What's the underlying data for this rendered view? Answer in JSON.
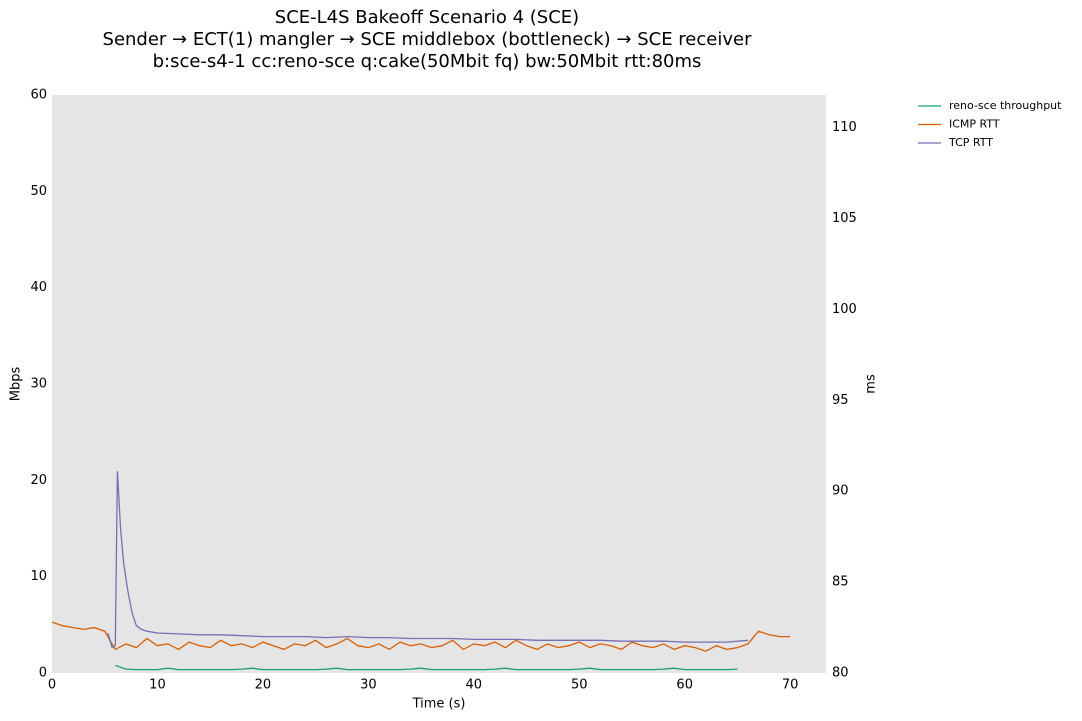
{
  "chart_data": {
    "type": "line",
    "title": "SCE-L4S Bakeoff Scenario 4 (SCE)",
    "subtitle": [
      "Sender → ECT(1) mangler → SCE middlebox (bottleneck) → SCE receiver",
      "b:sce-s4-1 cc:reno-sce q:cake(50Mbit fq) bw:50Mbit rtt:80ms"
    ],
    "x_label": "Time (s)",
    "y_label": "Mbps",
    "y2_label": "ms",
    "xlim": [
      0,
      73.4
    ],
    "xticks": [
      0,
      10,
      20,
      30,
      40,
      50,
      60,
      70
    ],
    "ylim": [
      0,
      60
    ],
    "yticks": [
      0,
      10,
      20,
      30,
      40,
      50,
      60
    ],
    "y2lim": [
      80,
      111.8
    ],
    "y2ticks": [
      80,
      85,
      90,
      95,
      100,
      105,
      110
    ],
    "grid": false,
    "legend": "outside upper right",
    "background": "#e5e5e5",
    "series": [
      {
        "name": "reno-sce throughput",
        "color": "#1b9e77",
        "axis": "y",
        "x": [
          6,
          7,
          8,
          9,
          10,
          11,
          12,
          13,
          14,
          15,
          16,
          17,
          18,
          19,
          20,
          21,
          22,
          23,
          24,
          25,
          26,
          27,
          28,
          29,
          30,
          31,
          32,
          33,
          34,
          35,
          36,
          37,
          38,
          39,
          40,
          41,
          42,
          43,
          44,
          45,
          46,
          47,
          48,
          49,
          50,
          51,
          52,
          53,
          54,
          55,
          56,
          57,
          58,
          59,
          60,
          61,
          62,
          63,
          64,
          65
        ],
        "values": [
          0.8,
          0.4,
          0.35,
          0.35,
          0.35,
          0.5,
          0.35,
          0.35,
          0.35,
          0.35,
          0.35,
          0.35,
          0.4,
          0.5,
          0.35,
          0.35,
          0.35,
          0.35,
          0.35,
          0.35,
          0.4,
          0.5,
          0.35,
          0.35,
          0.35,
          0.35,
          0.35,
          0.35,
          0.4,
          0.5,
          0.35,
          0.35,
          0.35,
          0.35,
          0.35,
          0.35,
          0.4,
          0.5,
          0.35,
          0.35,
          0.35,
          0.35,
          0.35,
          0.35,
          0.4,
          0.5,
          0.35,
          0.35,
          0.35,
          0.35,
          0.35,
          0.35,
          0.4,
          0.5,
          0.35,
          0.35,
          0.35,
          0.35,
          0.35,
          0.4
        ]
      },
      {
        "name": "ICMP RTT",
        "color": "#d95f02",
        "axis": "y2",
        "x": [
          0,
          1,
          2,
          3,
          4,
          5,
          6,
          7,
          8,
          9,
          10,
          11,
          12,
          13,
          14,
          15,
          16,
          17,
          18,
          19,
          20,
          21,
          22,
          23,
          24,
          25,
          26,
          27,
          28,
          29,
          30,
          31,
          32,
          33,
          34,
          35,
          36,
          37,
          38,
          39,
          40,
          41,
          42,
          43,
          44,
          45,
          46,
          47,
          48,
          49,
          50,
          51,
          52,
          53,
          54,
          55,
          56,
          57,
          58,
          59,
          60,
          61,
          62,
          63,
          64,
          65,
          66,
          67,
          68,
          69,
          70
        ],
        "values": [
          82.8,
          82.6,
          82.5,
          82.4,
          82.5,
          82.3,
          81.3,
          81.6,
          81.4,
          81.9,
          81.5,
          81.6,
          81.3,
          81.7,
          81.5,
          81.4,
          81.8,
          81.5,
          81.6,
          81.4,
          81.7,
          81.5,
          81.3,
          81.6,
          81.5,
          81.8,
          81.4,
          81.6,
          81.9,
          81.5,
          81.4,
          81.6,
          81.3,
          81.7,
          81.5,
          81.6,
          81.4,
          81.5,
          81.8,
          81.3,
          81.6,
          81.5,
          81.7,
          81.4,
          81.8,
          81.5,
          81.3,
          81.6,
          81.4,
          81.5,
          81.7,
          81.4,
          81.6,
          81.5,
          81.3,
          81.7,
          81.5,
          81.4,
          81.6,
          81.3,
          81.5,
          81.4,
          81.2,
          81.5,
          81.3,
          81.4,
          81.6,
          82.3,
          82.1,
          82.0,
          82.0
        ]
      },
      {
        "name": "TCP RTT",
        "color": "#7570b3",
        "axis": "y2",
        "x": [
          5.3,
          5.7,
          6.0,
          6.2,
          6.5,
          6.8,
          7.2,
          7.6,
          8,
          8.5,
          9,
          10,
          12,
          14,
          16,
          18,
          20,
          22,
          24,
          26,
          28,
          30,
          32,
          34,
          36,
          38,
          40,
          42,
          44,
          46,
          48,
          50,
          52,
          54,
          56,
          58,
          60,
          62,
          64,
          66
        ],
        "values": [
          82.2,
          81.4,
          81.5,
          91.1,
          88.0,
          86.0,
          84.5,
          83.3,
          82.6,
          82.4,
          82.3,
          82.2,
          82.15,
          82.1,
          82.1,
          82.05,
          82.0,
          82.0,
          82.0,
          81.95,
          82.0,
          81.95,
          81.95,
          81.9,
          81.9,
          81.9,
          81.85,
          81.85,
          81.85,
          81.8,
          81.8,
          81.8,
          81.8,
          81.75,
          81.75,
          81.75,
          81.7,
          81.7,
          81.7,
          81.8
        ]
      }
    ]
  }
}
